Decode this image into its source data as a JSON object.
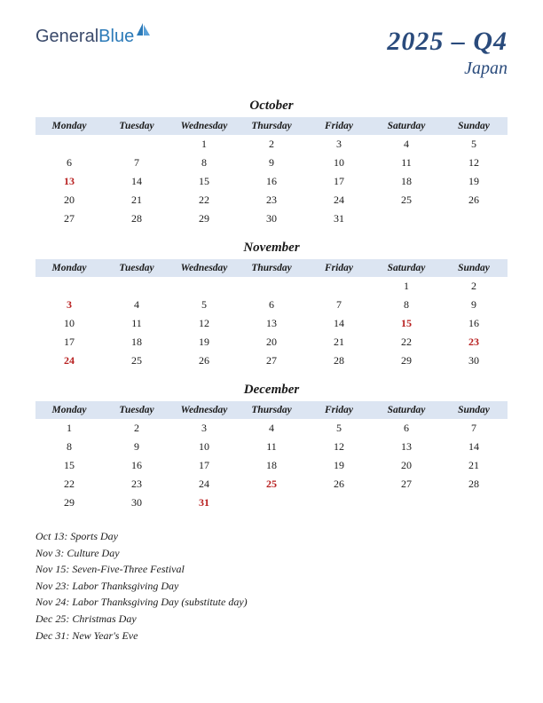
{
  "logo": {
    "part1": "General",
    "part2": "Blue"
  },
  "header": {
    "quarter": "2025 – Q4",
    "country": "Japan"
  },
  "daynames": [
    "Monday",
    "Tuesday",
    "Wednesday",
    "Thursday",
    "Friday",
    "Saturday",
    "Sunday"
  ],
  "colors": {
    "header_bg": "#dce5f2",
    "title_color": "#2a4b7c",
    "text_color": "#1a1a1a",
    "holiday_color": "#b82020",
    "logo_gray": "#3a4a6b",
    "logo_blue": "#2b7ab8"
  },
  "months": [
    {
      "name": "October",
      "weeks": [
        [
          "",
          "",
          "1",
          "2",
          "3",
          "4",
          "5"
        ],
        [
          "6",
          "7",
          "8",
          "9",
          "10",
          "11",
          "12"
        ],
        [
          "13",
          "14",
          "15",
          "16",
          "17",
          "18",
          "19"
        ],
        [
          "20",
          "21",
          "22",
          "23",
          "24",
          "25",
          "26"
        ],
        [
          "27",
          "28",
          "29",
          "30",
          "31",
          "",
          ""
        ]
      ],
      "holidays": [
        "13"
      ]
    },
    {
      "name": "November",
      "weeks": [
        [
          "",
          "",
          "",
          "",
          "",
          "1",
          "2"
        ],
        [
          "3",
          "4",
          "5",
          "6",
          "7",
          "8",
          "9"
        ],
        [
          "10",
          "11",
          "12",
          "13",
          "14",
          "15",
          "16"
        ],
        [
          "17",
          "18",
          "19",
          "20",
          "21",
          "22",
          "23"
        ],
        [
          "24",
          "25",
          "26",
          "27",
          "28",
          "29",
          "30"
        ]
      ],
      "holidays": [
        "3",
        "15",
        "23",
        "24"
      ]
    },
    {
      "name": "December",
      "weeks": [
        [
          "1",
          "2",
          "3",
          "4",
          "5",
          "6",
          "7"
        ],
        [
          "8",
          "9",
          "10",
          "11",
          "12",
          "13",
          "14"
        ],
        [
          "15",
          "16",
          "17",
          "18",
          "19",
          "20",
          "21"
        ],
        [
          "22",
          "23",
          "24",
          "25",
          "26",
          "27",
          "28"
        ],
        [
          "29",
          "30",
          "31",
          "",
          "",
          "",
          ""
        ]
      ],
      "holidays": [
        "25",
        "31"
      ]
    }
  ],
  "holiday_list": [
    "Oct 13: Sports Day",
    "Nov 3: Culture Day",
    "Nov 15: Seven-Five-Three Festival",
    "Nov 23: Labor Thanksgiving Day",
    "Nov 24: Labor Thanksgiving Day (substitute day)",
    "Dec 25: Christmas Day",
    "Dec 31: New Year's Eve"
  ]
}
